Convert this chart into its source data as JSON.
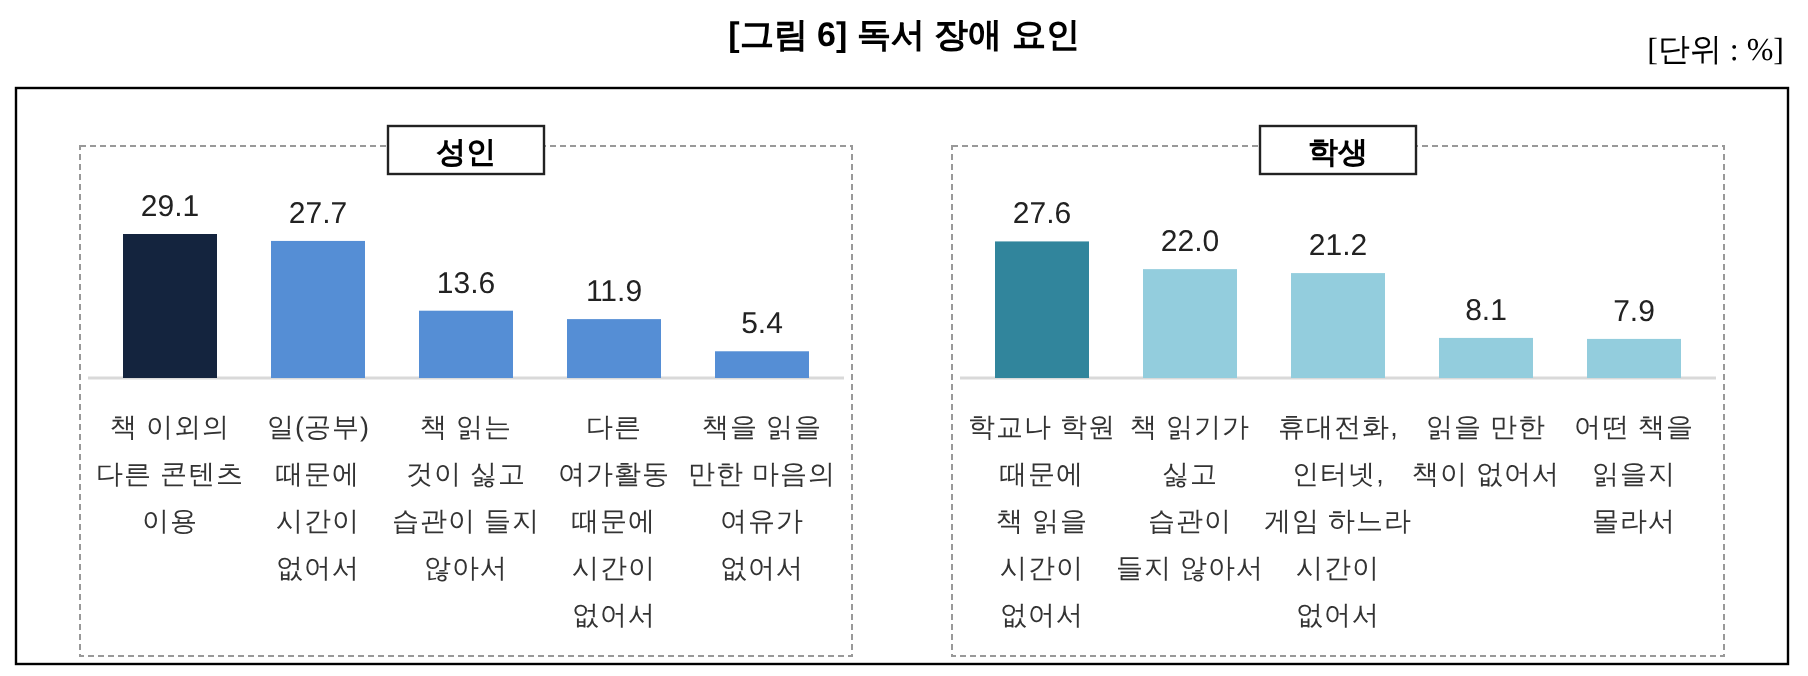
{
  "chart_data": [
    {
      "type": "bar",
      "title": "성인",
      "annotations": [
        "[그림 6] 독서 장애 요인",
        "[단위 : %]"
      ],
      "categories": [
        "책 이외의\n다른 콘텐츠\n이용",
        "일(공부)\n때문에\n시간이\n없어서",
        "책 읽는\n것이 싫고\n습관이 들지\n않아서",
        "다른\n여가활동\n때문에\n시간이\n없어서",
        "책을 읽을\n만한 마음의\n여유가\n없어서"
      ],
      "values": [
        29.1,
        27.7,
        13.6,
        11.9,
        5.4
      ],
      "value_labels": [
        "29.1",
        "27.7",
        "13.6",
        "11.9",
        "5.4"
      ],
      "colors": [
        "#14243e",
        "#558ed5",
        "#558ed5",
        "#558ed5",
        "#558ed5"
      ]
    },
    {
      "type": "bar",
      "title": "학생",
      "categories": [
        "학교나 학원\n때문에\n책 읽을\n시간이\n없어서",
        "책 읽기가\n싫고\n습관이\n들지 않아서",
        "휴대전화,\n인터넷,\n게임 하느라\n시간이\n없어서",
        "읽을 만한\n책이 없어서",
        "어떤 책을\n읽을지\n몰라서"
      ],
      "values": [
        27.6,
        22.0,
        21.2,
        8.1,
        7.9
      ],
      "value_labels": [
        "27.6",
        "22.0",
        "21.2",
        "8.1",
        "7.9"
      ],
      "colors": [
        "#31859c",
        "#93cddd",
        "#93cddd",
        "#93cddd",
        "#93cddd"
      ]
    }
  ]
}
